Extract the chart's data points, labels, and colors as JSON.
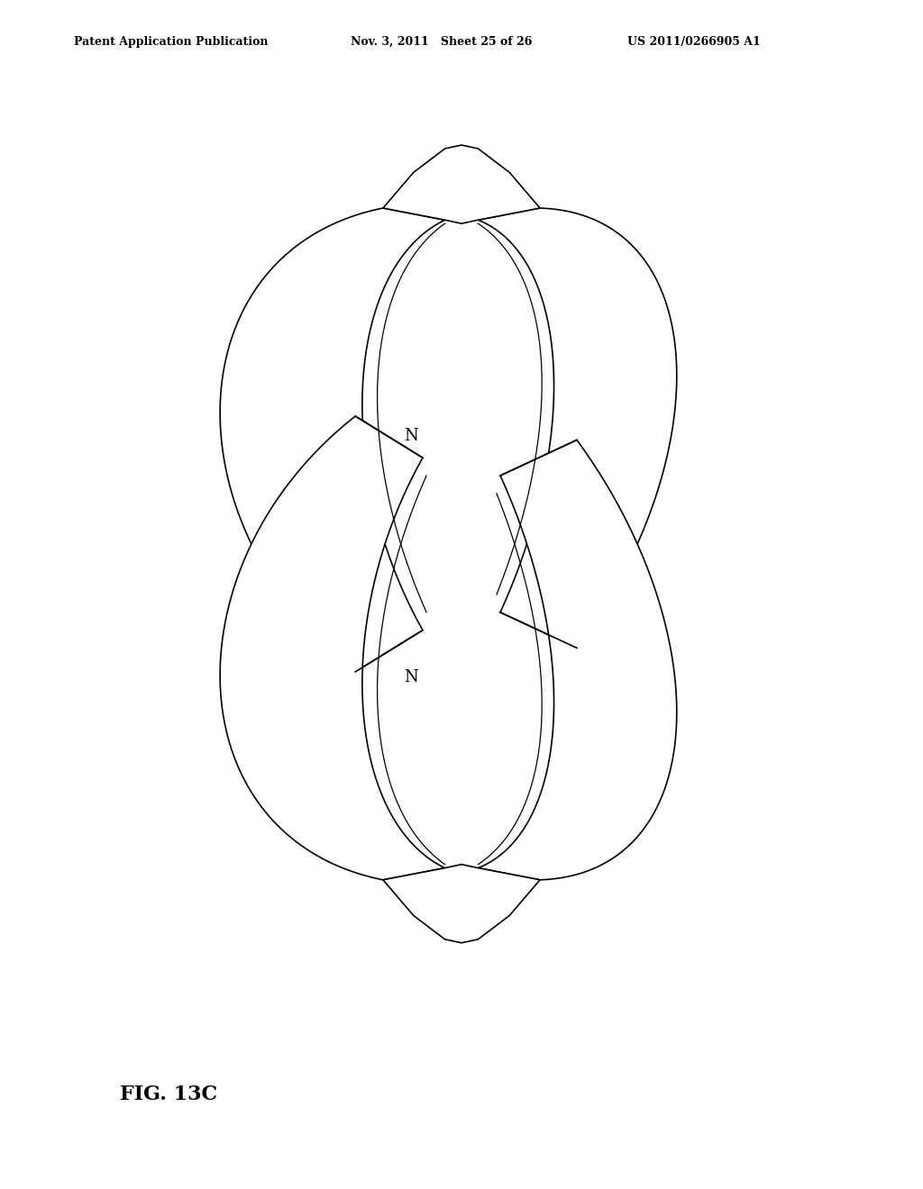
{
  "bg_color": "#ffffff",
  "line_color": "#000000",
  "line_width": 1.2,
  "header_left": "Patent Application Publication",
  "header_mid": "Nov. 3, 2011   Sheet 25 of 26",
  "header_right": "US 2011/0266905 A1",
  "figure_label": "FIG. 13C",
  "N_label_upper": "N",
  "N_label_lower": "N"
}
